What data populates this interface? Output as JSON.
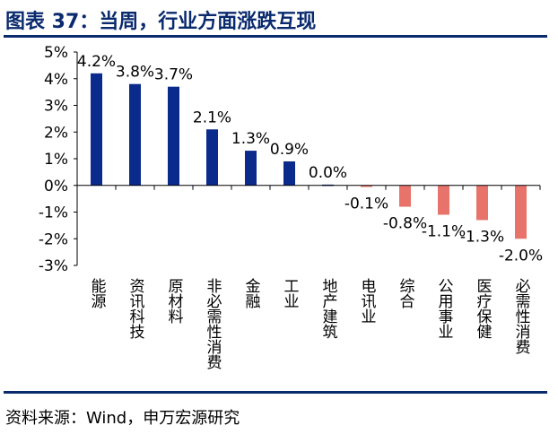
{
  "header": {
    "title": "图表 37：当周，行业方面涨跌互现"
  },
  "footer": {
    "source": "资料来源：Wind，申万宏源研究"
  },
  "colors": {
    "positive": "#0a2a8c",
    "negative": "#e8736a",
    "title": "#0a2a6e"
  },
  "chart_data": {
    "type": "bar",
    "title": "",
    "xlabel": "",
    "ylabel": "",
    "ylim": [
      -3,
      5
    ],
    "yticks": [
      5,
      4,
      3,
      2,
      1,
      0,
      -1,
      -2,
      -3
    ],
    "ytick_labels": [
      "5%",
      "4%",
      "3%",
      "2%",
      "1%",
      "0%",
      "-1%",
      "-2%",
      "-3%"
    ],
    "categories": [
      "能源",
      "资讯科技",
      "原材料",
      "非必需性消费",
      "金融",
      "工业",
      "地产建筑",
      "电讯业",
      "综合",
      "公用事业",
      "医疗保健",
      "必需性消费"
    ],
    "values": [
      4.2,
      3.8,
      3.7,
      2.1,
      1.3,
      0.9,
      0.03,
      -0.06,
      -0.8,
      -1.1,
      -1.3,
      -2.0
    ],
    "value_labels": [
      "4.2%",
      "3.8%",
      "3.7%",
      "2.1%",
      "1.3%",
      "0.9%",
      "0.0%",
      "-0.1%",
      "-0.8%",
      "-1.1%",
      "-1.3%",
      "-2.0%"
    ]
  }
}
